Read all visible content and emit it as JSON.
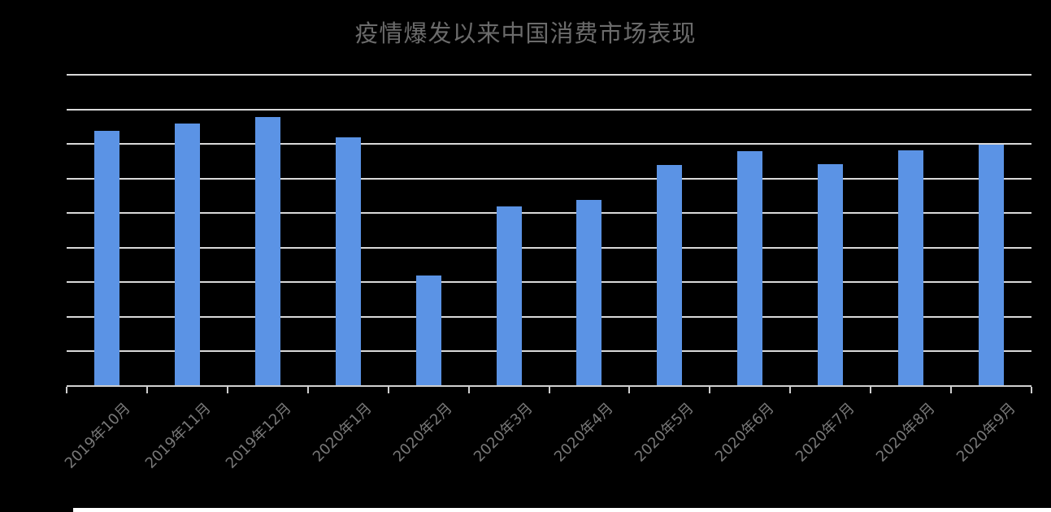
{
  "chart_data": {
    "type": "bar",
    "title": "疫情爆发以来中国消费市场表现",
    "categories": [
      "2019年10月",
      "2019年11月",
      "2019年12月",
      "2020年1月",
      "2020年2月",
      "2020年3月",
      "2020年4月",
      "2020年5月",
      "2020年6月",
      "2020年7月",
      "2020年8月",
      "2020年9月"
    ],
    "values": [
      7.38,
      7.6,
      7.78,
      7.18,
      3.19,
      5.2,
      5.39,
      6.4,
      6.8,
      6.41,
      6.81,
      6.98
    ],
    "series_name": "",
    "xlabel": "",
    "ylabel": "",
    "y_axis": {
      "min": 0,
      "max": 9,
      "gridline_step": 1,
      "tick_labels_visible": false,
      "note": "y-axis has no value labels; bar values estimated in gridline units from pixel heights"
    },
    "grid": true,
    "legend_position": "none",
    "x_label_rotation_deg": -45,
    "colors": {
      "background": "#000000",
      "bar": "#5B93E5",
      "gridline": "#D9D9D9",
      "axis": "#CFCFCF",
      "tick": "#CFCFCF",
      "title_text": "#6B6B6B",
      "label_text": "#787878",
      "bottom_strip": "#FFFFFF"
    }
  }
}
